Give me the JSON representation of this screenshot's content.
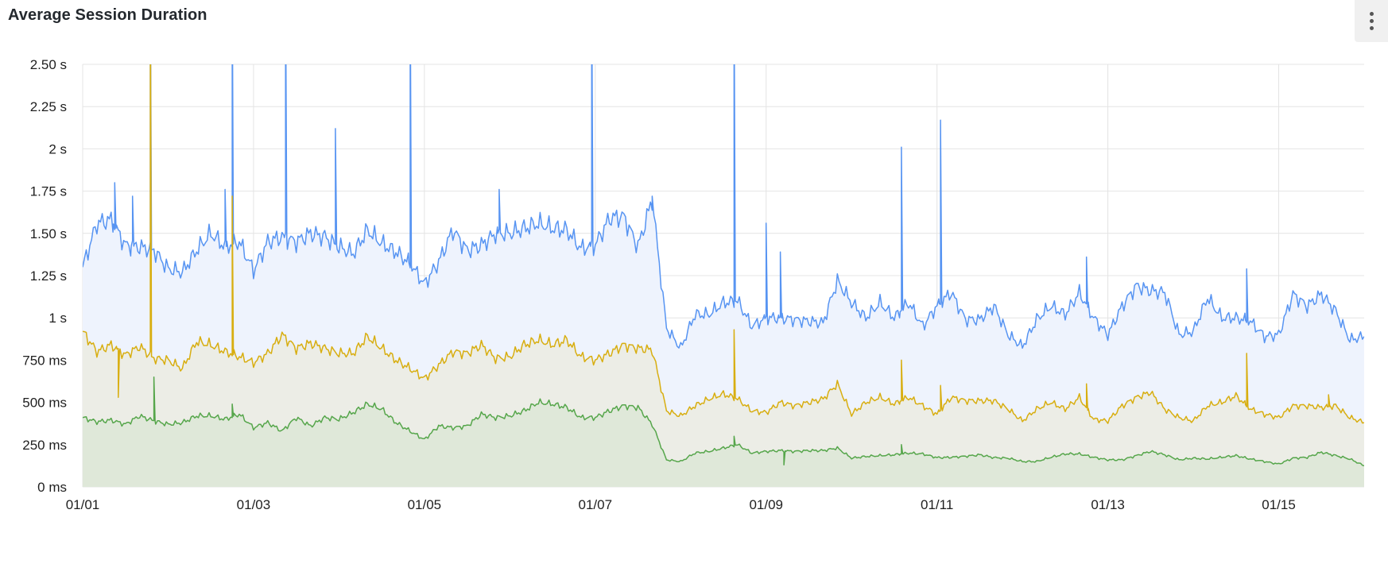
{
  "panel": {
    "title": "Average Session Duration",
    "menu_icon": "vertical-ellipsis-icon"
  },
  "chart_data": {
    "type": "area",
    "title": "Average Session Duration",
    "xlabel": "",
    "ylabel": "",
    "x_range": [
      "01/01 00:00",
      "01/16 00:00"
    ],
    "x_ticks": [
      "01/01",
      "01/03",
      "01/05",
      "01/07",
      "01/09",
      "01/11",
      "01/13",
      "01/15"
    ],
    "ylim_ms": [
      0,
      2500
    ],
    "y_ticks_ms": [
      0,
      250,
      500,
      750,
      1000,
      1250,
      1500,
      1750,
      2000,
      2250,
      2500
    ],
    "y_tick_labels": [
      "0 ms",
      "250 ms",
      "500 ms",
      "750 ms",
      "1 s",
      "1.25 s",
      "1.50 s",
      "1.75 s",
      "2 s",
      "2.25 s",
      "2.50 s"
    ],
    "grid": true,
    "legend": "none",
    "x_start": "01/01 00:00",
    "x_interval_hours": 4,
    "series": [
      {
        "color": "#5794f2",
        "fill": "#eef3fd",
        "values": [
          1300,
          1560,
          1580,
          1430,
          1420,
          1400,
          1290,
          1270,
          1400,
          1500,
          1420,
          1450,
          1280,
          1450,
          1480,
          1450,
          1500,
          1480,
          1420,
          1380,
          1520,
          1440,
          1390,
          1320,
          1200,
          1330,
          1520,
          1400,
          1430,
          1500,
          1500,
          1530,
          1560,
          1530,
          1520,
          1410,
          1430,
          1590,
          1600,
          1420,
          1700,
          940,
          820,
          1020,
          1020,
          1090,
          1100,
          950,
          1000,
          1000,
          990,
          980,
          970,
          1220,
          1090,
          1000,
          1090,
          1000,
          1090,
          950,
          1070,
          1150,
          990,
          990,
          1070,
          900,
          830,
          990,
          1070,
          1020,
          1150,
          1000,
          900,
          1070,
          1190,
          1160,
          1150,
          900,
          920,
          1120,
          1000,
          1000,
          980,
          890,
          900,
          1140,
          1070,
          1140,
          1040,
          870,
          890
        ],
        "spikes": [
          {
            "x": "01/01 09:00",
            "y": 1800
          },
          {
            "x": "01/01 14:00",
            "y": 1720
          },
          {
            "x": "01/01 19:00",
            "y": 3000
          },
          {
            "x": "01/02 16:00",
            "y": 1760
          },
          {
            "x": "01/02 18:00",
            "y": 3000
          },
          {
            "x": "01/03 09:00",
            "y": 3000
          },
          {
            "x": "01/03 23:00",
            "y": 2120
          },
          {
            "x": "01/04 20:00",
            "y": 3000
          },
          {
            "x": "01/05 21:00",
            "y": 1760
          },
          {
            "x": "01/06 23:00",
            "y": 3000
          },
          {
            "x": "01/07 16:00",
            "y": 1720
          },
          {
            "x": "01/08 15:00",
            "y": 3000
          },
          {
            "x": "01/09 00:00",
            "y": 1560
          },
          {
            "x": "01/09 04:00",
            "y": 1390
          },
          {
            "x": "01/10 14:00",
            "y": 2010
          },
          {
            "x": "01/11 01:00",
            "y": 2170
          },
          {
            "x": "01/12 18:00",
            "y": 1360
          },
          {
            "x": "01/14 15:00",
            "y": 1290
          }
        ]
      },
      {
        "color": "#d8ae10",
        "fill": "#ecede6",
        "values": [
          920,
          800,
          840,
          780,
          830,
          760,
          750,
          700,
          860,
          840,
          800,
          770,
          735,
          790,
          900,
          820,
          850,
          820,
          790,
          790,
          890,
          820,
          750,
          700,
          640,
          720,
          800,
          790,
          840,
          760,
          770,
          840,
          870,
          840,
          870,
          770,
          750,
          790,
          840,
          820,
          810,
          450,
          420,
          480,
          520,
          550,
          520,
          450,
          440,
          500,
          480,
          500,
          520,
          610,
          430,
          500,
          530,
          490,
          530,
          480,
          430,
          530,
          510,
          510,
          510,
          460,
          390,
          460,
          500,
          460,
          530,
          400,
          390,
          480,
          530,
          560,
          460,
          410,
          390,
          480,
          500,
          540,
          460,
          430,
          410,
          480,
          480,
          470,
          480,
          410,
          380
        ],
        "spikes": [
          {
            "x": "01/01 10:00",
            "y": 530
          },
          {
            "x": "01/01 19:00",
            "y": 3000
          },
          {
            "x": "01/02 18:00",
            "y": 1720
          },
          {
            "x": "01/08 15:00",
            "y": 930
          },
          {
            "x": "01/10 14:00",
            "y": 750
          },
          {
            "x": "01/11 01:00",
            "y": 600
          },
          {
            "x": "01/12 18:00",
            "y": 610
          },
          {
            "x": "01/14 15:00",
            "y": 790
          },
          {
            "x": "01/15 14:00",
            "y": 545
          }
        ]
      },
      {
        "color": "#56a64b",
        "fill": "#dfe8d9",
        "values": [
          410,
          385,
          395,
          370,
          420,
          390,
          370,
          380,
          420,
          420,
          400,
          430,
          350,
          380,
          330,
          410,
          360,
          410,
          400,
          440,
          490,
          460,
          380,
          330,
          280,
          360,
          350,
          360,
          430,
          410,
          420,
          450,
          500,
          490,
          470,
          410,
          410,
          450,
          480,
          470,
          370,
          160,
          150,
          200,
          210,
          230,
          250,
          200,
          210,
          215,
          210,
          215,
          215,
          230,
          170,
          180,
          185,
          190,
          200,
          195,
          173,
          175,
          181,
          190,
          173,
          170,
          150,
          150,
          175,
          195,
          195,
          175,
          160,
          160,
          185,
          210,
          190,
          160,
          170,
          165,
          175,
          185,
          165,
          150,
          135,
          170,
          175,
          205,
          185,
          165,
          125
        ],
        "spikes": [
          {
            "x": "01/01 20:00",
            "y": 650
          },
          {
            "x": "01/02 18:00",
            "y": 490
          },
          {
            "x": "01/08 15:00",
            "y": 300
          },
          {
            "x": "01/09 05:00",
            "y": 130
          },
          {
            "x": "01/10 14:00",
            "y": 250
          }
        ]
      }
    ]
  }
}
